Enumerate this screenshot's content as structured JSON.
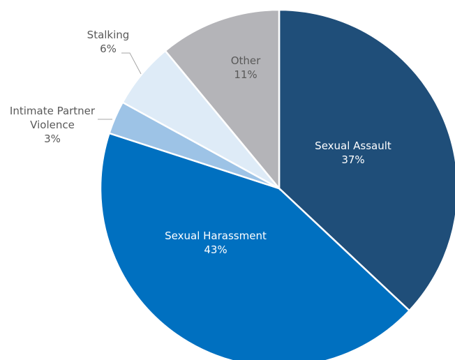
{
  "chart_data": {
    "type": "pie",
    "title": "",
    "legend": "none",
    "data_labels": "category name and percentage",
    "slices": [
      {
        "name": "Sexual Assault",
        "value": 37,
        "label": "Sexual Assault",
        "value_label": "37%",
        "color": "#1f4e79",
        "label_color": "#ffffff"
      },
      {
        "name": "Sexual Harassment",
        "value": 43,
        "label": "Sexual Harassment",
        "value_label": "43%",
        "color": "#0070c0",
        "label_color": "#ffffff"
      },
      {
        "name": "Intimate Partner Violence",
        "value": 3,
        "label_lines": [
          "Intimate Partner",
          "Violence"
        ],
        "value_label": "3%",
        "color": "#9dc3e6",
        "label_color": "#595959"
      },
      {
        "name": "Stalking",
        "value": 6,
        "label": "Stalking",
        "value_label": "6%",
        "color": "#deebf7",
        "label_color": "#595959"
      },
      {
        "name": "Other",
        "value": 11,
        "label": "Other",
        "value_label": "11%",
        "color": "#b4b4b8",
        "label_color": "#595959"
      }
    ]
  }
}
